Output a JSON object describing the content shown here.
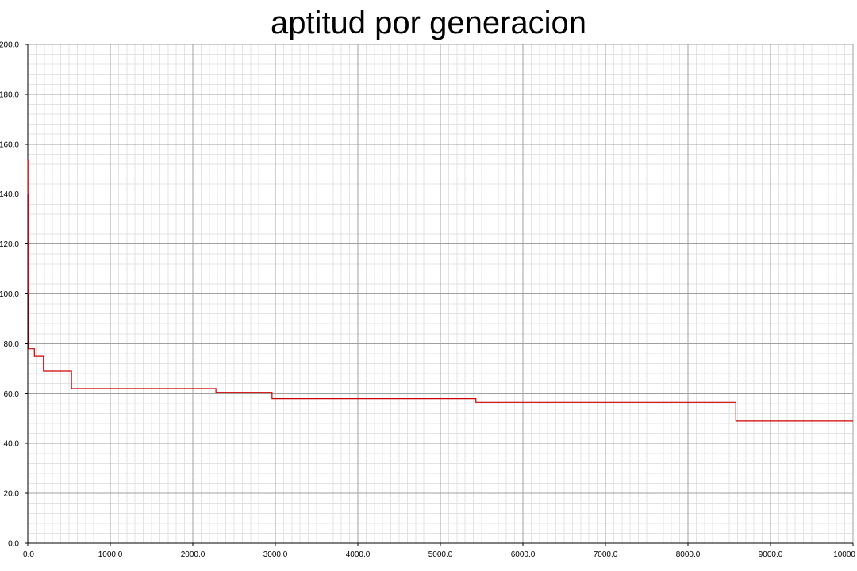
{
  "chart_data": {
    "type": "line",
    "title": "aptitud por generacion",
    "xlabel": "",
    "ylabel": "",
    "xlim": [
      0,
      10000
    ],
    "ylim": [
      0,
      200
    ],
    "x_major_step": 1000,
    "y_major_step": 20,
    "x_minor_step": 100,
    "y_minor_step": 4,
    "x_ticks": [
      "0.0",
      "1000.0",
      "2000.0",
      "3000.0",
      "4000.0",
      "5000.0",
      "6000.0",
      "7000.0",
      "8000.0",
      "9000.0",
      "10000"
    ],
    "y_ticks": [
      "0.0",
      "20.0",
      "40.0",
      "60.0",
      "80.0",
      "100.0",
      "120.0",
      "140.0",
      "160.0",
      "180.0",
      "200.0"
    ],
    "grid": true,
    "line_style": "step",
    "series": [
      {
        "name": "",
        "color": "#cc0000",
        "x": [
          0,
          2,
          5,
          10,
          80,
          190,
          530,
          2280,
          2960,
          5430,
          8580,
          10000
        ],
        "y": [
          154,
          140,
          100,
          78,
          75,
          69,
          62,
          60.5,
          58,
          56.5,
          49,
          49
        ]
      }
    ]
  }
}
